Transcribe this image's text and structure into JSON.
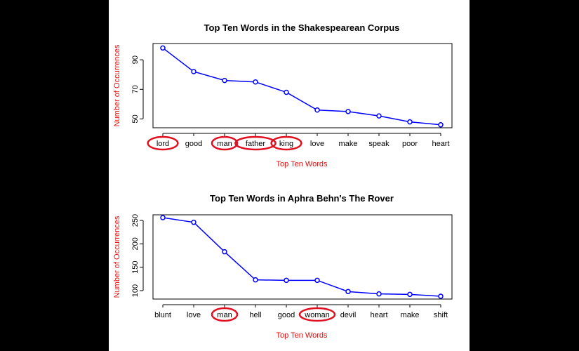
{
  "chart_data": [
    {
      "type": "line",
      "title": "Top Ten Words in the Shakespearean Corpus",
      "xlabel": "Top Ten Words",
      "ylabel": "Number of Occurrences",
      "categories": [
        "lord",
        "good",
        "man",
        "father",
        "king",
        "love",
        "make",
        "speak",
        "poor",
        "heart"
      ],
      "values": [
        98,
        82,
        76,
        75,
        68,
        56,
        55,
        52,
        48,
        46
      ],
      "highlighted": [
        "lord",
        "man",
        "father",
        "king"
      ],
      "yticks": [
        50,
        70,
        90
      ],
      "ylim": [
        44,
        101
      ],
      "series_color": "#0000ff",
      "highlight_color": "#e01020"
    },
    {
      "type": "line",
      "title": "Top Ten Words in Aphra Behn's The Rover",
      "xlabel": "Top Ten Words",
      "ylabel": "Number of Occurrences",
      "categories": [
        "blunt",
        "love",
        "man",
        "hell",
        "good",
        "woman",
        "devil",
        "heart",
        "make",
        "shift"
      ],
      "values": [
        256,
        246,
        183,
        123,
        122,
        122,
        98,
        93,
        92,
        88
      ],
      "highlighted": [
        "man",
        "woman"
      ],
      "yticks": [
        100,
        150,
        200,
        250
      ],
      "ylim": [
        82,
        262
      ],
      "series_color": "#0000ff",
      "highlight_color": "#e01020"
    }
  ]
}
